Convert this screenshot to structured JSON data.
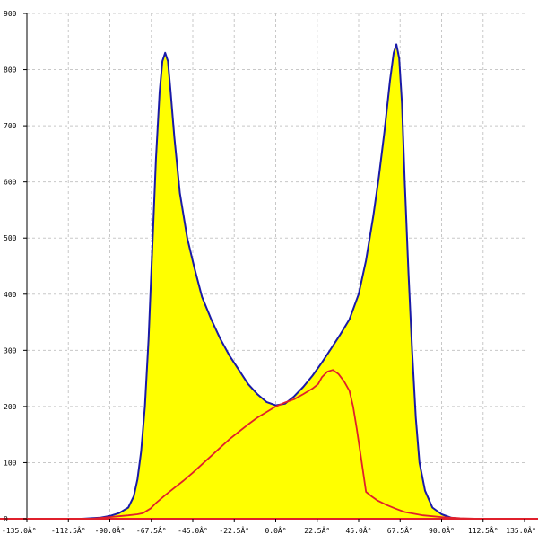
{
  "chart_data": {
    "type": "area",
    "title": "",
    "xlabel": "",
    "ylabel": "",
    "xlim": [
      -135,
      135
    ],
    "ylim": [
      0,
      900
    ],
    "grid": true,
    "legend": "none",
    "x_ticks": [
      {
        "value": -135,
        "label": "-135.0Â°"
      },
      {
        "value": -112.5,
        "label": "-112.5Â°"
      },
      {
        "value": -90,
        "label": "-90.0Â°"
      },
      {
        "value": -67.5,
        "label": "-67.5Â°"
      },
      {
        "value": -45,
        "label": "-45.0Â°"
      },
      {
        "value": -22.5,
        "label": "-22.5Â°"
      },
      {
        "value": 0,
        "label": "0.0Â°"
      },
      {
        "value": 22.5,
        "label": "22.5Â°"
      },
      {
        "value": 45,
        "label": "45.0Â°"
      },
      {
        "value": 67.5,
        "label": "67.5Â°"
      },
      {
        "value": 90,
        "label": "90.0Â°"
      },
      {
        "value": 112.5,
        "label": "112.5Â°"
      },
      {
        "value": 135,
        "label": "135.0Â°"
      }
    ],
    "y_ticks": [
      {
        "value": 0,
        "label": "0"
      },
      {
        "value": 100,
        "label": "100"
      },
      {
        "value": 200,
        "label": "200"
      },
      {
        "value": 300,
        "label": "300"
      },
      {
        "value": 400,
        "label": "400"
      },
      {
        "value": 500,
        "label": "500"
      },
      {
        "value": 600,
        "label": "600"
      },
      {
        "value": 700,
        "label": "700"
      },
      {
        "value": 800,
        "label": "800"
      },
      {
        "value": 900,
        "label": "900"
      }
    ],
    "series": [
      {
        "style": "filled-area",
        "fill_color": "#ffff00",
        "line_color": "#1a1aa8",
        "points": [
          [
            -135,
            0
          ],
          [
            -105,
            0
          ],
          [
            -95,
            2
          ],
          [
            -90,
            5
          ],
          [
            -85,
            10
          ],
          [
            -80,
            20
          ],
          [
            -77,
            40
          ],
          [
            -75,
            70
          ],
          [
            -73,
            120
          ],
          [
            -71,
            200
          ],
          [
            -69,
            320
          ],
          [
            -67,
            480
          ],
          [
            -65,
            640
          ],
          [
            -63,
            760
          ],
          [
            -61.5,
            815
          ],
          [
            -60,
            830
          ],
          [
            -58.5,
            815
          ],
          [
            -57,
            760
          ],
          [
            -55,
            680
          ],
          [
            -52,
            580
          ],
          [
            -48,
            500
          ],
          [
            -44,
            445
          ],
          [
            -40,
            395
          ],
          [
            -35,
            355
          ],
          [
            -30,
            320
          ],
          [
            -25,
            290
          ],
          [
            -20,
            265
          ],
          [
            -15,
            240
          ],
          [
            -10,
            222
          ],
          [
            -5,
            208
          ],
          [
            0,
            202
          ],
          [
            5,
            205
          ],
          [
            10,
            218
          ],
          [
            15,
            235
          ],
          [
            20,
            255
          ],
          [
            25,
            278
          ],
          [
            30,
            303
          ],
          [
            35,
            328
          ],
          [
            40,
            355
          ],
          [
            45,
            400
          ],
          [
            49,
            460
          ],
          [
            53,
            540
          ],
          [
            56,
            610
          ],
          [
            59,
            690
          ],
          [
            62,
            780
          ],
          [
            64,
            830
          ],
          [
            65.5,
            845
          ],
          [
            67,
            820
          ],
          [
            68.5,
            740
          ],
          [
            70,
            600
          ],
          [
            72,
            440
          ],
          [
            74,
            300
          ],
          [
            76,
            180
          ],
          [
            78,
            100
          ],
          [
            81,
            50
          ],
          [
            85,
            20
          ],
          [
            90,
            8
          ],
          [
            95,
            2
          ],
          [
            100,
            0
          ],
          [
            135,
            0
          ]
        ]
      },
      {
        "style": "line",
        "line_color": "#e0202c",
        "points": [
          [
            -135,
            0
          ],
          [
            -100,
            0
          ],
          [
            -90,
            3
          ],
          [
            -80,
            6
          ],
          [
            -75,
            8
          ],
          [
            -72,
            10
          ],
          [
            -68,
            18
          ],
          [
            -65,
            28
          ],
          [
            -60,
            42
          ],
          [
            -55,
            55
          ],
          [
            -50,
            68
          ],
          [
            -45,
            82
          ],
          [
            -40,
            97
          ],
          [
            -35,
            112
          ],
          [
            -30,
            127
          ],
          [
            -25,
            142
          ],
          [
            -20,
            155
          ],
          [
            -15,
            168
          ],
          [
            -10,
            180
          ],
          [
            -5,
            190
          ],
          [
            0,
            200
          ],
          [
            5,
            207
          ],
          [
            10,
            213
          ],
          [
            15,
            222
          ],
          [
            20,
            232
          ],
          [
            23,
            240
          ],
          [
            25,
            252
          ],
          [
            28,
            262
          ],
          [
            31,
            265
          ],
          [
            34,
            258
          ],
          [
            37,
            245
          ],
          [
            40,
            228
          ],
          [
            42,
            200
          ],
          [
            44,
            160
          ],
          [
            46,
            115
          ],
          [
            48,
            70
          ],
          [
            49,
            48
          ],
          [
            52,
            40
          ],
          [
            55,
            33
          ],
          [
            60,
            25
          ],
          [
            65,
            18
          ],
          [
            70,
            12
          ],
          [
            80,
            6
          ],
          [
            90,
            3
          ],
          [
            100,
            1
          ],
          [
            110,
            0
          ],
          [
            135,
            0
          ]
        ]
      }
    ]
  }
}
